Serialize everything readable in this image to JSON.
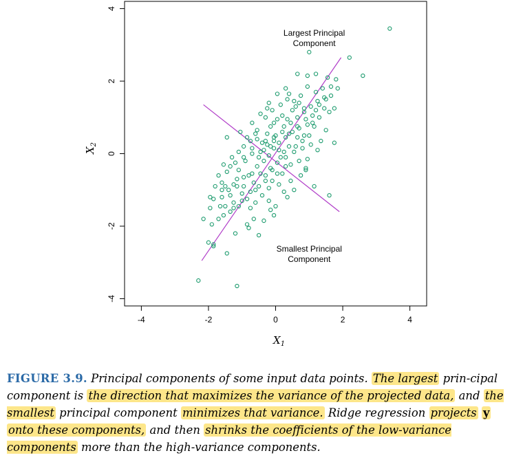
{
  "chart_data": {
    "type": "scatter",
    "xlabel": "X",
    "xlabel_sub": "1",
    "ylabel": "X",
    "ylabel_sub": "2",
    "xlim": [
      -4.5,
      4.5
    ],
    "ylim": [
      -4.2,
      4.2
    ],
    "xticks": [
      -4,
      -2,
      0,
      2,
      4
    ],
    "yticks": [
      -4,
      -2,
      0,
      2,
      4
    ],
    "grid": false,
    "point_color": "#1a9a6c",
    "line_color": "#b03cc8",
    "lines": [
      {
        "name": "Largest Principal Component",
        "x": [
          -2.2,
          1.95
        ],
        "y": [
          -2.95,
          2.65
        ]
      },
      {
        "name": "Smallest Principal Component",
        "x": [
          -2.15,
          1.9
        ],
        "y": [
          1.35,
          -1.6
        ]
      }
    ],
    "annotations": [
      {
        "lines": [
          "Largest Principal",
          "Component"
        ],
        "x": 1.15,
        "y": 3.25
      },
      {
        "lines": [
          "Smallest Principal",
          "Component"
        ],
        "x": 1.0,
        "y": -2.7
      }
    ],
    "points": [
      [
        -2.3,
        -3.5
      ],
      [
        -1.15,
        -3.65
      ],
      [
        -1.85,
        -2.5
      ],
      [
        -1.2,
        -2.2
      ],
      [
        -1.45,
        -2.75
      ],
      [
        -2.15,
        -1.8
      ],
      [
        -1.9,
        -1.95
      ],
      [
        -1.55,
        -1.7
      ],
      [
        -1.7,
        -1.8
      ],
      [
        -1.35,
        -1.6
      ],
      [
        -1.1,
        -1.45
      ],
      [
        -0.75,
        -1.5
      ],
      [
        -0.85,
        -1.95
      ],
      [
        -0.8,
        -2.05
      ],
      [
        -0.5,
        -2.25
      ],
      [
        -0.6,
        -1.35
      ],
      [
        -1.95,
        -1.5
      ],
      [
        -1.6,
        -1.2
      ],
      [
        -1.4,
        -1.0
      ],
      [
        -1.25,
        -0.85
      ],
      [
        -1.5,
        -0.9
      ],
      [
        -1.15,
        -0.7
      ],
      [
        -0.95,
        -0.9
      ],
      [
        -0.8,
        -0.6
      ],
      [
        -0.65,
        -0.8
      ],
      [
        -0.45,
        -0.55
      ],
      [
        -0.3,
        -0.6
      ],
      [
        -0.1,
        -0.75
      ],
      [
        0.05,
        -0.55
      ],
      [
        0.1,
        -0.85
      ],
      [
        -0.2,
        -0.95
      ],
      [
        -1.7,
        -0.6
      ],
      [
        -1.55,
        -0.3
      ],
      [
        -1.35,
        -0.35
      ],
      [
        -1.1,
        -0.45
      ],
      [
        -0.9,
        -0.2
      ],
      [
        -0.7,
        0.0
      ],
      [
        -0.5,
        -0.1
      ],
      [
        -0.35,
        0.1
      ],
      [
        -0.2,
        -0.05
      ],
      [
        -0.05,
        0.15
      ],
      [
        0.15,
        -0.1
      ],
      [
        0.25,
        0.05
      ],
      [
        -1.3,
        -0.1
      ],
      [
        -1.1,
        0.05
      ],
      [
        -0.95,
        0.2
      ],
      [
        -0.75,
        0.35
      ],
      [
        -0.55,
        0.4
      ],
      [
        -0.4,
        0.3
      ],
      [
        -0.25,
        0.55
      ],
      [
        -0.05,
        0.45
      ],
      [
        0.1,
        0.3
      ],
      [
        0.3,
        0.45
      ],
      [
        0.5,
        0.6
      ],
      [
        0.65,
        0.75
      ],
      [
        -1.8,
        -0.9
      ],
      [
        -1.95,
        -1.2
      ],
      [
        -1.65,
        -1.45
      ],
      [
        -1.25,
        -1.35
      ],
      [
        -1.0,
        -1.1
      ],
      [
        -0.85,
        -1.25
      ],
      [
        -0.6,
        -1.0
      ],
      [
        -0.4,
        -1.15
      ],
      [
        -0.2,
        -1.3
      ],
      [
        0.0,
        -1.45
      ],
      [
        -0.05,
        -1.7
      ],
      [
        0.35,
        -1.2
      ],
      [
        0.55,
        -1.0
      ],
      [
        0.75,
        -0.6
      ],
      [
        0.9,
        -0.4
      ],
      [
        0.45,
        -0.3
      ],
      [
        0.3,
        -0.1
      ],
      [
        0.6,
        0.2
      ],
      [
        0.8,
        0.35
      ],
      [
        1.0,
        0.5
      ],
      [
        1.15,
        0.75
      ],
      [
        1.3,
        1.0
      ],
      [
        1.45,
        1.25
      ],
      [
        1.25,
        1.45
      ],
      [
        1.05,
        1.3
      ],
      [
        0.85,
        1.15
      ],
      [
        0.65,
        1.0
      ],
      [
        0.45,
        0.85
      ],
      [
        0.25,
        0.75
      ],
      [
        0.05,
        0.95
      ],
      [
        -0.15,
        0.75
      ],
      [
        -0.3,
        1.0
      ],
      [
        -0.1,
        1.2
      ],
      [
        0.15,
        1.35
      ],
      [
        0.35,
        1.5
      ],
      [
        0.55,
        1.45
      ],
      [
        0.75,
        1.6
      ],
      [
        0.95,
        1.85
      ],
      [
        1.2,
        1.7
      ],
      [
        1.45,
        1.55
      ],
      [
        1.65,
        1.85
      ],
      [
        1.8,
        2.05
      ],
      [
        1.55,
        2.1
      ],
      [
        1.2,
        2.2
      ],
      [
        0.95,
        2.15
      ],
      [
        0.65,
        2.2
      ],
      [
        0.3,
        1.8
      ],
      [
        0.05,
        1.65
      ],
      [
        -0.2,
        1.4
      ],
      [
        -0.45,
        1.1
      ],
      [
        -0.7,
        0.85
      ],
      [
        1.0,
        2.8
      ],
      [
        2.2,
        2.65
      ],
      [
        2.6,
        2.15
      ],
      [
        1.85,
        1.8
      ],
      [
        3.4,
        3.45
      ],
      [
        1.6,
        1.15
      ],
      [
        1.75,
        0.3
      ],
      [
        1.6,
        -1.15
      ],
      [
        1.15,
        -0.9
      ],
      [
        0.9,
        -0.45
      ],
      [
        1.35,
        0.35
      ],
      [
        1.1,
        0.85
      ],
      [
        0.85,
        0.5
      ],
      [
        0.55,
        0.05
      ],
      [
        0.3,
        -0.35
      ],
      [
        0.05,
        -0.25
      ],
      [
        -0.15,
        -0.4
      ],
      [
        -0.35,
        -0.2
      ],
      [
        -0.55,
        -0.35
      ],
      [
        -0.7,
        -0.55
      ],
      [
        -0.95,
        -0.65
      ],
      [
        -1.15,
        -0.9
      ],
      [
        -1.35,
        -1.15
      ],
      [
        -1.6,
        -1.0
      ],
      [
        -1.45,
        -0.5
      ],
      [
        -1.2,
        -0.25
      ],
      [
        -0.95,
        -0.1
      ],
      [
        -0.7,
        0.15
      ],
      [
        -0.45,
        0.05
      ],
      [
        -0.25,
        0.25
      ],
      [
        -0.05,
        0.35
      ],
      [
        0.2,
        0.6
      ],
      [
        0.4,
        0.2
      ],
      [
        0.65,
        0.45
      ],
      [
        0.9,
        0.95
      ],
      [
        1.1,
        1.05
      ],
      [
        1.3,
        1.35
      ],
      [
        0.5,
        1.2
      ],
      [
        0.2,
        1.05
      ],
      [
        -0.05,
        0.85
      ],
      [
        -0.25,
        1.25
      ],
      [
        0.4,
        1.65
      ],
      [
        0.7,
        1.4
      ],
      [
        1.5,
        0.65
      ],
      [
        1.25,
        0.1
      ],
      [
        0.95,
        -0.15
      ],
      [
        0.7,
        -0.2
      ],
      [
        0.2,
        -0.55
      ],
      [
        -0.1,
        -0.45
      ],
      [
        -0.3,
        -0.75
      ],
      [
        -0.5,
        -0.9
      ],
      [
        -0.75,
        -1.05
      ],
      [
        -1.0,
        -1.3
      ],
      [
        -1.25,
        -1.5
      ],
      [
        -1.5,
        -1.45
      ],
      [
        -0.65,
        -1.8
      ],
      [
        -0.15,
        -1.55
      ],
      [
        -0.35,
        -1.85
      ],
      [
        0.25,
        -1.05
      ],
      [
        0.45,
        -0.75
      ],
      [
        0.8,
        0.15
      ],
      [
        1.05,
        0.25
      ],
      [
        -0.85,
        0.45
      ],
      [
        -1.05,
        0.6
      ],
      [
        -0.6,
        0.55
      ],
      [
        -0.3,
        0.35
      ],
      [
        0.0,
        0.5
      ],
      [
        0.35,
        0.95
      ],
      [
        0.6,
        1.3
      ],
      [
        0.85,
        1.25
      ],
      [
        1.5,
        1.5
      ],
      [
        1.75,
        1.25
      ],
      [
        -1.45,
        0.45
      ],
      [
        -1.6,
        -0.8
      ],
      [
        -1.85,
        -1.25
      ],
      [
        -0.55,
        0.65
      ],
      [
        -0.15,
        0.2
      ],
      [
        0.1,
        0.1
      ],
      [
        0.4,
        0.55
      ],
      [
        0.7,
        0.7
      ],
      [
        0.95,
        0.8
      ],
      [
        1.2,
        1.2
      ],
      [
        1.4,
        1.8
      ],
      [
        1.65,
        1.6
      ],
      [
        -2.0,
        -2.45
      ],
      [
        -1.85,
        -2.55
      ]
    ]
  },
  "caption": {
    "figure_label": "FIGURE 3.9.",
    "seg1": "Principal components of some input data points.",
    "hl1": "The largest",
    "seg2": "prin-cipal component is",
    "hl2": "the direction that maximizes the variance of the projected data,",
    "seg3": "and",
    "hl3": "the smallest",
    "seg4": "principal component",
    "hl4": "minimizes that variance.",
    "seg5": "Ridge regression",
    "hl5a": "projects",
    "hl5b": "y",
    "hl5c": "onto these components,",
    "seg6": "and then",
    "hl6": "shrinks the coefficients of the low-variance components",
    "seg7": "more than the high-variance components."
  }
}
